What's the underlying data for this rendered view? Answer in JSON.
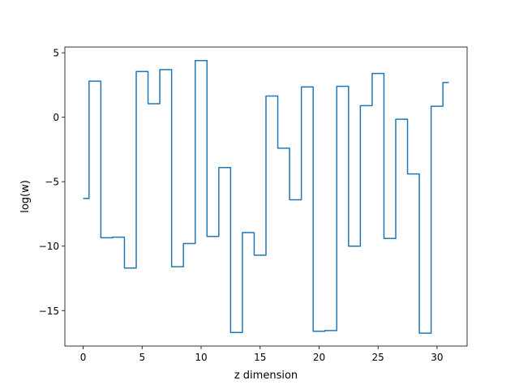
{
  "chart_data": {
    "type": "line",
    "drawstyle": "steps-mid",
    "xlabel": "z dimension",
    "ylabel": "log(w)",
    "xlim": [
      -1.55,
      32.55
    ],
    "ylim": [
      -17.75,
      5.45
    ],
    "xticks": [
      0,
      5,
      10,
      15,
      20,
      25,
      30
    ],
    "xtick_labels": [
      "0",
      "5",
      "10",
      "15",
      "20",
      "25",
      "30"
    ],
    "yticks": [
      5,
      0,
      -5,
      -10,
      -15
    ],
    "ytick_labels": [
      "5",
      "0",
      "−5",
      "−10",
      "−15"
    ],
    "grid": false,
    "series": [
      {
        "color": "#1f77b4",
        "x": [
          0,
          1,
          2,
          3,
          4,
          5,
          6,
          7,
          8,
          9,
          10,
          11,
          12,
          13,
          14,
          15,
          16,
          17,
          18,
          19,
          20,
          21,
          22,
          23,
          24,
          25,
          26,
          27,
          28,
          29,
          30,
          31
        ],
        "y": [
          -6.3,
          2.8,
          -9.35,
          -9.3,
          -11.7,
          3.55,
          1.05,
          3.7,
          -11.6,
          -9.8,
          4.4,
          -9.25,
          -3.9,
          -16.7,
          -8.95,
          -10.7,
          1.65,
          -2.4,
          -6.4,
          2.35,
          -16.6,
          -16.55,
          2.4,
          -10.0,
          0.9,
          3.4,
          -9.4,
          -0.15,
          -4.4,
          -16.75,
          0.85,
          2.7
        ]
      }
    ]
  }
}
